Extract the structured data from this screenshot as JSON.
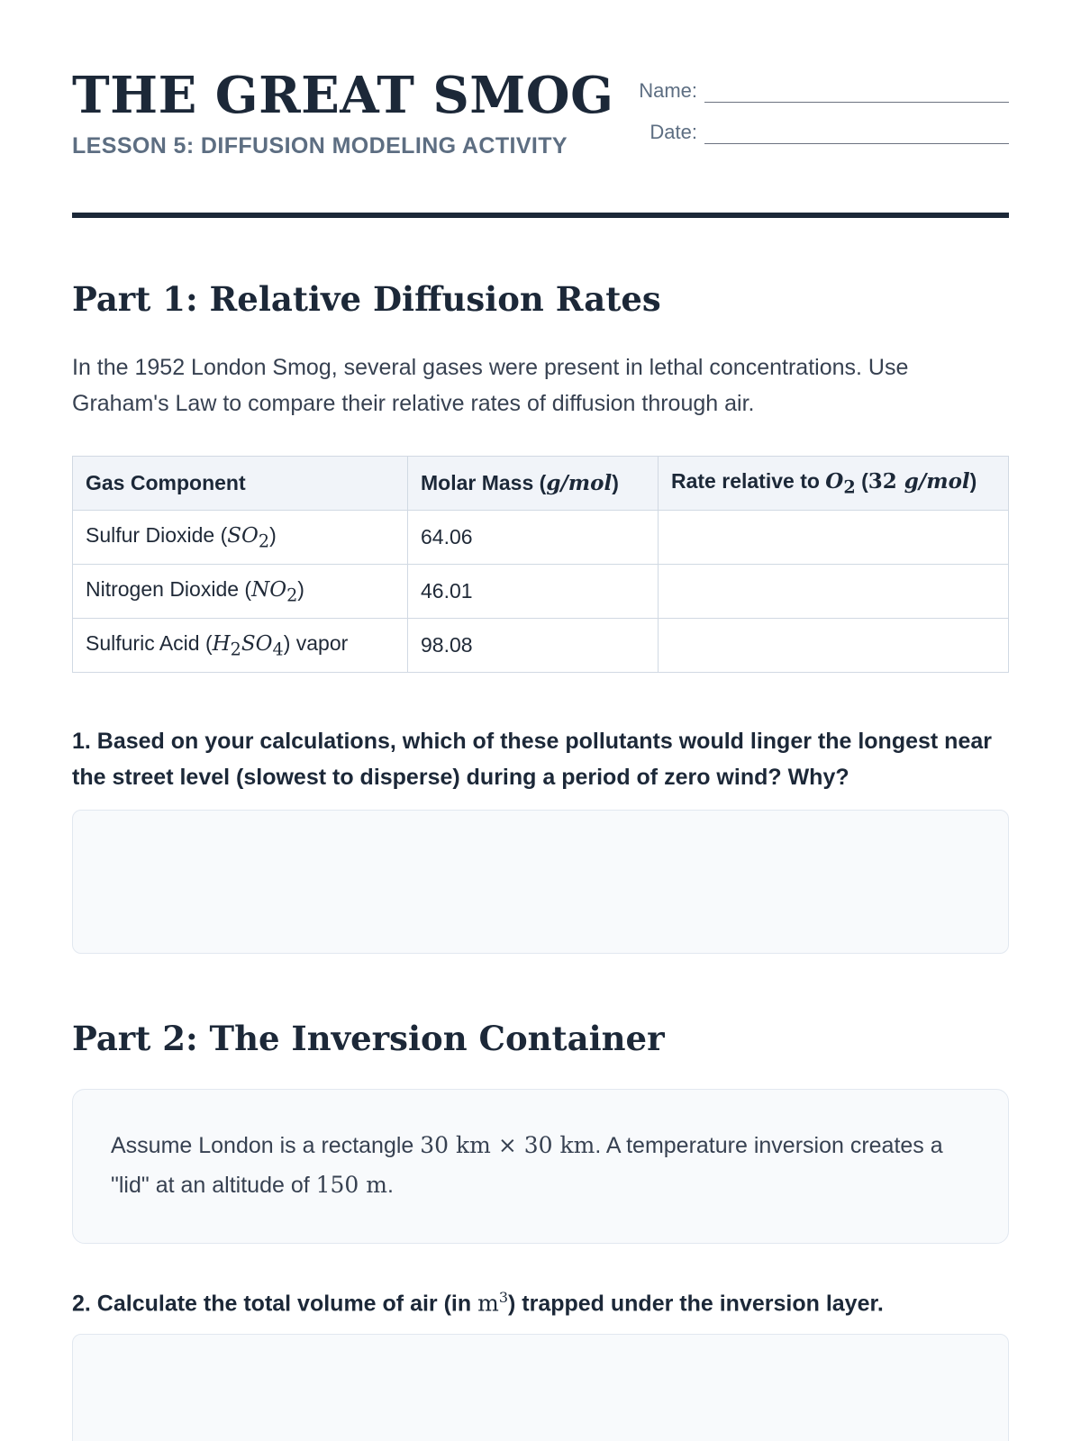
{
  "header": {
    "title": "THE GREAT SMOG",
    "subtitle": "LESSON 5: DIFFUSION MODELING ACTIVITY",
    "name_label": "Name:",
    "date_label": "Date:"
  },
  "part1": {
    "title": "Part 1: Relative Diffusion Rates",
    "intro": "In the 1952 London Smog, several gases were present in lethal concentrations. Use Graham's Law to compare their relative rates of diffusion through air.",
    "table": {
      "headers": {
        "gas": "Gas Component",
        "molar_prefix": "Molar Mass (",
        "molar_unit": "g/mol",
        "molar_suffix": ")",
        "rate_prefix": "Rate relative to ",
        "rate_o": "O",
        "rate_sub": "2",
        "rate_open": " (",
        "rate_num": "32 ",
        "rate_unit": "g/mol",
        "rate_suffix": ")"
      },
      "rows": [
        {
          "name": "Sulfur Dioxide (",
          "f1": "SO",
          "s1": "2",
          "f2": "",
          "s2": "",
          "tail": ")",
          "mass": "64.06",
          "rate": ""
        },
        {
          "name": "Nitrogen Dioxide (",
          "f1": "NO",
          "s1": "2",
          "f2": "",
          "s2": "",
          "tail": ")",
          "mass": "46.01",
          "rate": ""
        },
        {
          "name": "Sulfuric Acid (",
          "f1": "H",
          "s1": "2",
          "f2": "SO",
          "s2": "4",
          "tail": ") vapor",
          "mass": "98.08",
          "rate": ""
        }
      ]
    },
    "question1": "1. Based on your calculations, which of these pollutants would linger the longest near the street level (slowest to disperse) during a period of zero wind? Why?"
  },
  "part2": {
    "title": "Part 2: The Inversion Container",
    "info": {
      "t1": "Assume London is a rectangle ",
      "m1": "30 km × 30 km",
      "t2": ". A temperature inversion creates a \"lid\" at an altitude of ",
      "m2": "150 m",
      "t3": "."
    },
    "question2": {
      "prefix": "2. Calculate the total volume of air (in ",
      "unit": "m",
      "sup": "3",
      "suffix": ") trapped under the inversion layer."
    }
  }
}
